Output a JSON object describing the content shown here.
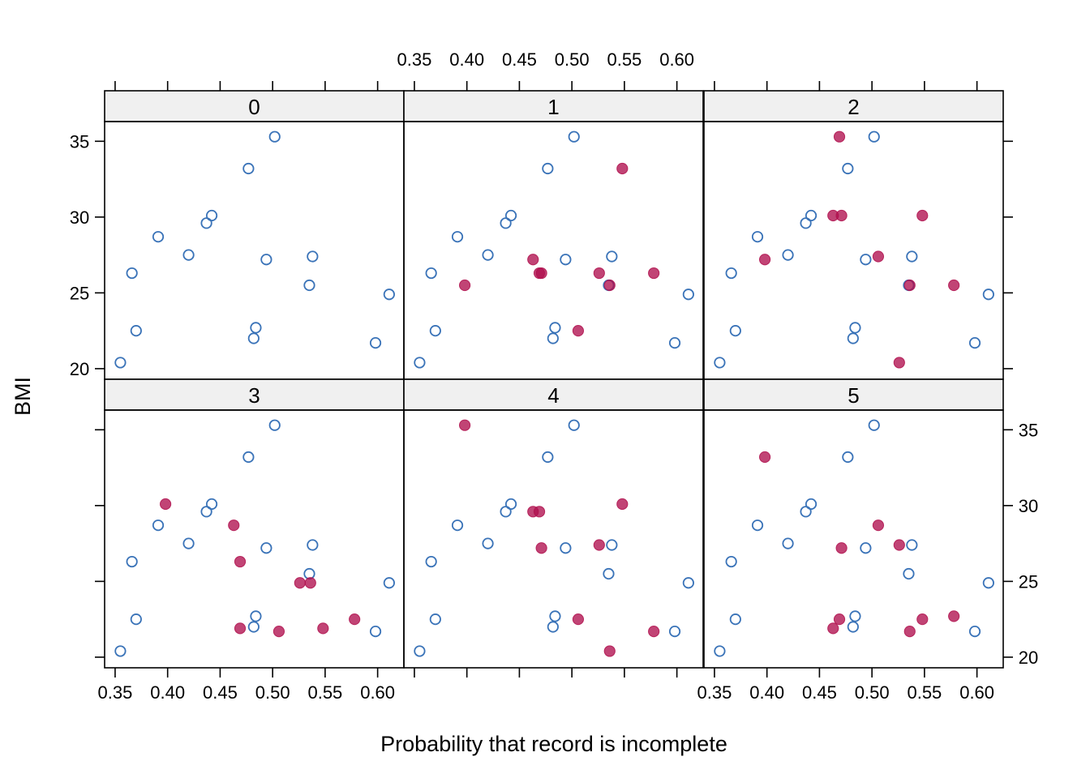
{
  "chart_data": {
    "type": "scatter",
    "xlabel": "Probability that record is incomplete",
    "ylabel": "BMI",
    "xlim": [
      0.34,
      0.625
    ],
    "ylim": [
      19.3,
      36.3
    ],
    "x_ticks": [
      0.35,
      0.4,
      0.45,
      0.5,
      0.55,
      0.6
    ],
    "x_tick_labels": [
      "0.35",
      "0.40",
      "0.45",
      "0.50",
      "0.55",
      "0.60"
    ],
    "y_ticks": [
      20,
      25,
      30,
      35
    ],
    "y_tick_labels": [
      "20",
      "25",
      "30",
      "35"
    ],
    "colors": {
      "observed": "#3a73b8",
      "imputed": "#b0104e",
      "strip_bg": "#f0f0f0"
    },
    "layout": {
      "columns": 3,
      "rows": 2
    },
    "points": [
      {
        "x": 0.355,
        "y": 20.4
      },
      {
        "x": 0.366,
        "y": 26.3
      },
      {
        "x": 0.37,
        "y": 22.5
      },
      {
        "x": 0.391,
        "y": 28.7
      },
      {
        "x": 0.42,
        "y": 27.5
      },
      {
        "x": 0.437,
        "y": 29.6
      },
      {
        "x": 0.442,
        "y": 30.1
      },
      {
        "x": 0.477,
        "y": 33.2
      },
      {
        "x": 0.482,
        "y": 22.0
      },
      {
        "x": 0.484,
        "y": 22.7
      },
      {
        "x": 0.494,
        "y": 27.2
      },
      {
        "x": 0.502,
        "y": 35.3
      },
      {
        "x": 0.535,
        "y": 25.5
      },
      {
        "x": 0.538,
        "y": 27.4
      },
      {
        "x": 0.598,
        "y": 21.7
      },
      {
        "x": 0.611,
        "y": 24.9
      }
    ],
    "panels": [
      {
        "label": "0",
        "imputed": []
      },
      {
        "label": "1",
        "imputed": [
          {
            "x": 0.398,
            "y": 25.5
          },
          {
            "x": 0.463,
            "y": 27.2
          },
          {
            "x": 0.469,
            "y": 26.3
          },
          {
            "x": 0.471,
            "y": 26.3
          },
          {
            "x": 0.506,
            "y": 22.5
          },
          {
            "x": 0.526,
            "y": 26.3
          },
          {
            "x": 0.536,
            "y": 25.5
          },
          {
            "x": 0.548,
            "y": 33.2
          },
          {
            "x": 0.578,
            "y": 26.3
          }
        ]
      },
      {
        "label": "2",
        "imputed": [
          {
            "x": 0.398,
            "y": 27.2
          },
          {
            "x": 0.463,
            "y": 30.1
          },
          {
            "x": 0.469,
            "y": 35.3
          },
          {
            "x": 0.471,
            "y": 30.1
          },
          {
            "x": 0.506,
            "y": 27.4
          },
          {
            "x": 0.526,
            "y": 20.4
          },
          {
            "x": 0.536,
            "y": 25.5
          },
          {
            "x": 0.548,
            "y": 30.1
          },
          {
            "x": 0.578,
            "y": 25.5
          }
        ]
      },
      {
        "label": "3",
        "imputed": [
          {
            "x": 0.398,
            "y": 30.1
          },
          {
            "x": 0.463,
            "y": 28.7
          },
          {
            "x": 0.469,
            "y": 21.9
          },
          {
            "x": 0.469,
            "y": 26.3
          },
          {
            "x": 0.506,
            "y": 21.7
          },
          {
            "x": 0.526,
            "y": 24.9
          },
          {
            "x": 0.536,
            "y": 24.9
          },
          {
            "x": 0.548,
            "y": 21.9
          },
          {
            "x": 0.578,
            "y": 22.5
          }
        ]
      },
      {
        "label": "4",
        "imputed": [
          {
            "x": 0.398,
            "y": 35.3
          },
          {
            "x": 0.463,
            "y": 29.6
          },
          {
            "x": 0.469,
            "y": 29.6
          },
          {
            "x": 0.471,
            "y": 27.2
          },
          {
            "x": 0.506,
            "y": 22.5
          },
          {
            "x": 0.526,
            "y": 27.4
          },
          {
            "x": 0.536,
            "y": 20.4
          },
          {
            "x": 0.548,
            "y": 30.1
          },
          {
            "x": 0.578,
            "y": 21.7
          }
        ]
      },
      {
        "label": "5",
        "imputed": [
          {
            "x": 0.398,
            "y": 33.2
          },
          {
            "x": 0.463,
            "y": 21.9
          },
          {
            "x": 0.469,
            "y": 22.5
          },
          {
            "x": 0.471,
            "y": 27.2
          },
          {
            "x": 0.506,
            "y": 28.7
          },
          {
            "x": 0.526,
            "y": 27.4
          },
          {
            "x": 0.536,
            "y": 21.7
          },
          {
            "x": 0.548,
            "y": 22.5
          },
          {
            "x": 0.578,
            "y": 22.7
          }
        ]
      }
    ]
  }
}
